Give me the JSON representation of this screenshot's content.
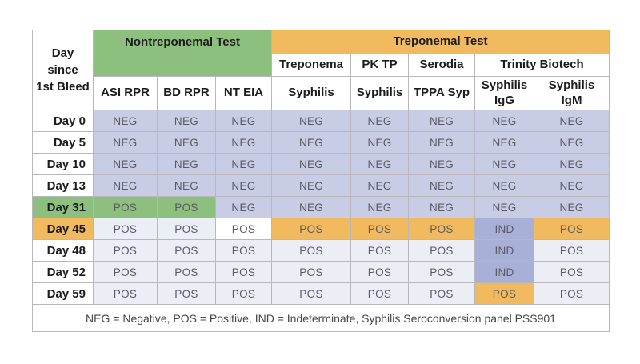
{
  "colors": {
    "green": "#8dc07e",
    "orange": "#f2ba5e",
    "lavender": "#c9cce5",
    "pale_lavender": "#eceef6",
    "periwinkle": "#a9b0d7",
    "white": "#ffffff",
    "border": "#b7b7bc",
    "border_dark": "#8f8f94",
    "header_text": "#1c1c1e",
    "value_text": "#5a5a64",
    "legend_text": "#474747"
  },
  "table": {
    "day_header_line1": "Day since",
    "day_header_line2": "1st Bleed",
    "groups": [
      {
        "label": "Nontreponemal Test",
        "color": "#8dc07e"
      },
      {
        "label": "Treponemal Test",
        "color": "#f2ba5e"
      }
    ],
    "vendors": [
      "Treponema",
      "PK TP",
      "Serodia",
      "Trinity Biotech"
    ],
    "tests": [
      "ASI RPR",
      "BD RPR",
      "NT EIA",
      "Syphilis",
      "Syphilis",
      "TPPA Syp",
      "Syphilis IgG",
      "Syphilis IgM"
    ],
    "rows": [
      {
        "day": "Day 0",
        "day_bg": "white",
        "cells": [
          [
            "NEG",
            "lav"
          ],
          [
            "NEG",
            "lav"
          ],
          [
            "NEG",
            "lav"
          ],
          [
            "NEG",
            "lav"
          ],
          [
            "NEG",
            "lav"
          ],
          [
            "NEG",
            "lav"
          ],
          [
            "NEG",
            "lav"
          ],
          [
            "NEG",
            "lav"
          ]
        ]
      },
      {
        "day": "Day 5",
        "day_bg": "white",
        "cells": [
          [
            "NEG",
            "lav"
          ],
          [
            "NEG",
            "lav"
          ],
          [
            "NEG",
            "lav"
          ],
          [
            "NEG",
            "lav"
          ],
          [
            "NEG",
            "lav"
          ],
          [
            "NEG",
            "lav"
          ],
          [
            "NEG",
            "lav"
          ],
          [
            "NEG",
            "lav"
          ]
        ]
      },
      {
        "day": "Day 10",
        "day_bg": "white",
        "cells": [
          [
            "NEG",
            "lav"
          ],
          [
            "NEG",
            "lav"
          ],
          [
            "NEG",
            "lav"
          ],
          [
            "NEG",
            "lav"
          ],
          [
            "NEG",
            "lav"
          ],
          [
            "NEG",
            "lav"
          ],
          [
            "NEG",
            "lav"
          ],
          [
            "NEG",
            "lav"
          ]
        ]
      },
      {
        "day": "Day 13",
        "day_bg": "white",
        "cells": [
          [
            "NEG",
            "lav"
          ],
          [
            "NEG",
            "lav"
          ],
          [
            "NEG",
            "lav"
          ],
          [
            "NEG",
            "lav"
          ],
          [
            "NEG",
            "lav"
          ],
          [
            "NEG",
            "lav"
          ],
          [
            "NEG",
            "lav"
          ],
          [
            "NEG",
            "lav"
          ]
        ]
      },
      {
        "day": "Day 31",
        "day_bg": "green",
        "cells": [
          [
            "POS",
            "green"
          ],
          [
            "POS",
            "green"
          ],
          [
            "NEG",
            "lav"
          ],
          [
            "NEG",
            "lav"
          ],
          [
            "NEG",
            "lav"
          ],
          [
            "NEG",
            "lav"
          ],
          [
            "NEG",
            "lav"
          ],
          [
            "NEG",
            "lav"
          ]
        ]
      },
      {
        "day": "Day 45",
        "day_bg": "orange",
        "cells": [
          [
            "POS",
            "pale"
          ],
          [
            "POS",
            "pale"
          ],
          [
            "POS",
            "white"
          ],
          [
            "POS",
            "orange"
          ],
          [
            "POS",
            "orange"
          ],
          [
            "POS",
            "orange"
          ],
          [
            "IND",
            "peri"
          ],
          [
            "POS",
            "orange"
          ]
        ]
      },
      {
        "day": "Day 48",
        "day_bg": "white",
        "cells": [
          [
            "POS",
            "pale"
          ],
          [
            "POS",
            "pale"
          ],
          [
            "POS",
            "pale"
          ],
          [
            "POS",
            "pale"
          ],
          [
            "POS",
            "pale"
          ],
          [
            "POS",
            "pale"
          ],
          [
            "IND",
            "peri"
          ],
          [
            "POS",
            "pale"
          ]
        ]
      },
      {
        "day": "Day 52",
        "day_bg": "white",
        "cells": [
          [
            "POS",
            "pale"
          ],
          [
            "POS",
            "pale"
          ],
          [
            "POS",
            "pale"
          ],
          [
            "POS",
            "pale"
          ],
          [
            "POS",
            "pale"
          ],
          [
            "POS",
            "pale"
          ],
          [
            "IND",
            "peri"
          ],
          [
            "POS",
            "pale"
          ]
        ]
      },
      {
        "day": "Day 59",
        "day_bg": "white",
        "cells": [
          [
            "POS",
            "pale"
          ],
          [
            "POS",
            "pale"
          ],
          [
            "POS",
            "pale"
          ],
          [
            "POS",
            "pale"
          ],
          [
            "POS",
            "pale"
          ],
          [
            "POS",
            "pale"
          ],
          [
            "POS",
            "orange"
          ],
          [
            "POS",
            "pale"
          ]
        ]
      }
    ],
    "legend": "NEG = Negative, POS = Positive, IND = Indeterminate, Syphilis Seroconversion panel PSS901"
  },
  "chart_data": {
    "type": "table",
    "title": "Syphilis Seroconversion panel PSS901",
    "row_label": "Day since 1st Bleed",
    "columns": [
      {
        "group": "Nontreponemal Test",
        "vendor": "",
        "test": "ASI RPR"
      },
      {
        "group": "Nontreponemal Test",
        "vendor": "",
        "test": "BD RPR"
      },
      {
        "group": "Nontreponemal Test",
        "vendor": "",
        "test": "NT EIA"
      },
      {
        "group": "Treponemal Test",
        "vendor": "Treponema",
        "test": "Syphilis"
      },
      {
        "group": "Treponemal Test",
        "vendor": "PK TP",
        "test": "Syphilis"
      },
      {
        "group": "Treponemal Test",
        "vendor": "Serodia",
        "test": "TPPA Syp"
      },
      {
        "group": "Treponemal Test",
        "vendor": "Trinity Biotech",
        "test": "Syphilis IgG"
      },
      {
        "group": "Treponemal Test",
        "vendor": "Trinity Biotech",
        "test": "Syphilis IgM"
      }
    ],
    "rows": [
      {
        "day": "Day 0",
        "results": [
          "NEG",
          "NEG",
          "NEG",
          "NEG",
          "NEG",
          "NEG",
          "NEG",
          "NEG"
        ]
      },
      {
        "day": "Day 5",
        "results": [
          "NEG",
          "NEG",
          "NEG",
          "NEG",
          "NEG",
          "NEG",
          "NEG",
          "NEG"
        ]
      },
      {
        "day": "Day 10",
        "results": [
          "NEG",
          "NEG",
          "NEG",
          "NEG",
          "NEG",
          "NEG",
          "NEG",
          "NEG"
        ]
      },
      {
        "day": "Day 13",
        "results": [
          "NEG",
          "NEG",
          "NEG",
          "NEG",
          "NEG",
          "NEG",
          "NEG",
          "NEG"
        ]
      },
      {
        "day": "Day 31",
        "results": [
          "POS",
          "POS",
          "NEG",
          "NEG",
          "NEG",
          "NEG",
          "NEG",
          "NEG"
        ]
      },
      {
        "day": "Day 45",
        "results": [
          "POS",
          "POS",
          "POS",
          "POS",
          "POS",
          "POS",
          "IND",
          "POS"
        ]
      },
      {
        "day": "Day 48",
        "results": [
          "POS",
          "POS",
          "POS",
          "POS",
          "POS",
          "POS",
          "IND",
          "POS"
        ]
      },
      {
        "day": "Day 52",
        "results": [
          "POS",
          "POS",
          "POS",
          "POS",
          "POS",
          "POS",
          "IND",
          "POS"
        ]
      },
      {
        "day": "Day 59",
        "results": [
          "POS",
          "POS",
          "POS",
          "POS",
          "POS",
          "POS",
          "POS",
          "POS"
        ]
      }
    ],
    "legend": "NEG = Negative, POS = Positive, IND = Indeterminate"
  }
}
